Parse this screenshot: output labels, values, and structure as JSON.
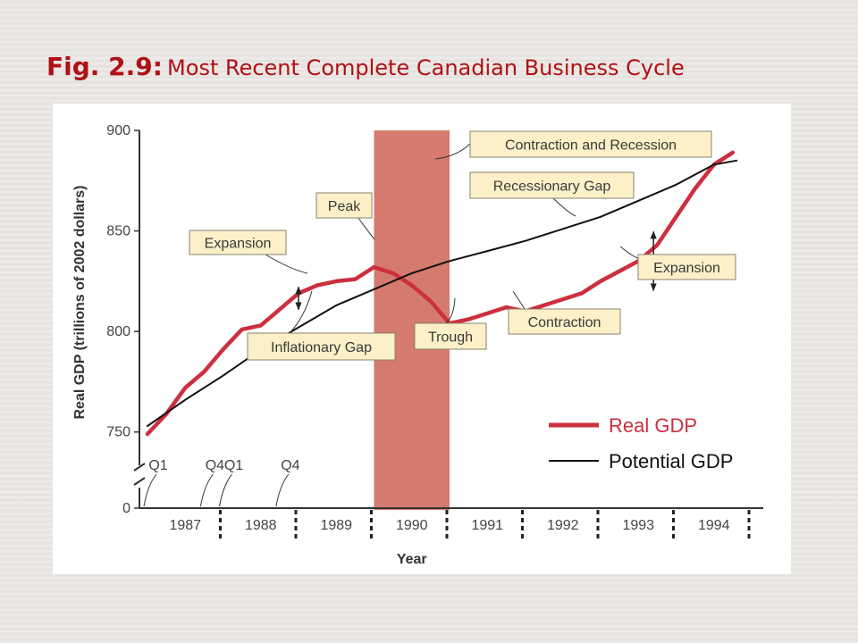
{
  "slide": {
    "fig_label": "Fig. 2.9:",
    "title": "Most Recent Complete Canadian Business Cycle"
  },
  "colors": {
    "title": "#b01015",
    "real_gdp": "#cc2f3e",
    "potential_gdp": "#111111",
    "recession_band": "#d47a6e",
    "callout_fill": "#fbf0c8"
  },
  "chart_data": {
    "type": "line",
    "xlabel": "Year",
    "ylabel": "Real GDP (trillions of 2002 dollars)",
    "y_ticks": [
      0,
      750,
      800,
      850,
      900
    ],
    "y_range": [
      725,
      900
    ],
    "y_axis_break": true,
    "years": [
      "1987",
      "1988",
      "1989",
      "1990",
      "1991",
      "1992",
      "1993",
      "1994"
    ],
    "quarter_labels": [
      {
        "label": "Q1",
        "x": 1987.0
      },
      {
        "label": "Q4",
        "x": 1987.75
      },
      {
        "label": "Q1",
        "x": 1988.0
      },
      {
        "label": "Q4",
        "x": 1988.75
      }
    ],
    "recession_shading": {
      "label": "Contraction and Recession",
      "x_start": 1990.0,
      "x_end": 1991.0
    },
    "series": [
      {
        "name": "Real GDP",
        "color": "#cc2f3e",
        "points": [
          [
            1987.0,
            749
          ],
          [
            1987.25,
            759
          ],
          [
            1987.5,
            772
          ],
          [
            1987.75,
            780
          ],
          [
            1988.0,
            791
          ],
          [
            1988.25,
            801
          ],
          [
            1988.5,
            803
          ],
          [
            1988.75,
            811
          ],
          [
            1989.0,
            819
          ],
          [
            1989.25,
            823
          ],
          [
            1989.5,
            825
          ],
          [
            1989.75,
            826
          ],
          [
            1990.0,
            832
          ],
          [
            1990.25,
            829
          ],
          [
            1990.5,
            823
          ],
          [
            1990.75,
            815
          ],
          [
            1991.0,
            804
          ],
          [
            1991.25,
            806
          ],
          [
            1991.5,
            809
          ],
          [
            1991.75,
            812
          ],
          [
            1992.0,
            810
          ],
          [
            1992.25,
            813
          ],
          [
            1992.5,
            816
          ],
          [
            1992.75,
            819
          ],
          [
            1993.0,
            825
          ],
          [
            1993.25,
            830
          ],
          [
            1993.5,
            835
          ],
          [
            1993.75,
            843
          ],
          [
            1994.0,
            857
          ],
          [
            1994.25,
            871
          ],
          [
            1994.5,
            883
          ],
          [
            1994.75,
            889
          ]
        ]
      },
      {
        "name": "Potential GDP",
        "color": "#111111",
        "points": [
          [
            1987.0,
            753
          ],
          [
            1987.5,
            766
          ],
          [
            1988.0,
            778
          ],
          [
            1988.5,
            791
          ],
          [
            1989.0,
            802
          ],
          [
            1989.5,
            813
          ],
          [
            1990.0,
            821
          ],
          [
            1990.5,
            829
          ],
          [
            1991.0,
            835
          ],
          [
            1991.5,
            840
          ],
          [
            1992.0,
            845
          ],
          [
            1992.5,
            851
          ],
          [
            1993.0,
            857
          ],
          [
            1993.5,
            865
          ],
          [
            1994.0,
            873
          ],
          [
            1994.5,
            883
          ],
          [
            1994.8,
            885
          ]
        ]
      }
    ],
    "annotations": [
      {
        "id": "expansion-1",
        "text": "Expansion",
        "target": [
          1988.9,
          813
        ]
      },
      {
        "id": "peak",
        "text": "Peak",
        "target": [
          1990.0,
          832
        ]
      },
      {
        "id": "inflationary-gap",
        "text": "Inflationary Gap",
        "target": [
          1989.0,
          810
        ]
      },
      {
        "id": "trough",
        "text": "Trough",
        "target": [
          1991.0,
          804
        ]
      },
      {
        "id": "contraction",
        "text": "Contraction",
        "target": [
          1991.85,
          811
        ]
      },
      {
        "id": "recessionary-gap",
        "text": "Recessionary Gap",
        "target": [
          1992.85,
          847
        ]
      },
      {
        "id": "expansion-2",
        "text": "Expansion",
        "target": [
          1993.9,
          845
        ]
      },
      {
        "id": "contraction-recession",
        "text": "Contraction and Recession",
        "target": [
          1990.65,
          875
        ]
      }
    ],
    "legend": {
      "position": "bottom-right",
      "entries": [
        "Real GDP",
        "Potential GDP"
      ]
    }
  }
}
